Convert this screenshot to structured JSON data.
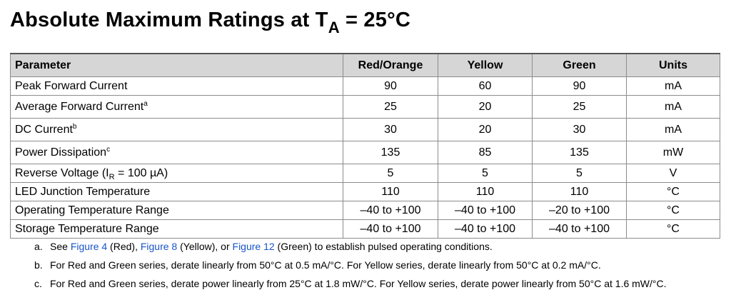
{
  "title": {
    "main": "Absolute Maximum Ratings at T",
    "subscript": "A",
    "tail": " = 25°C"
  },
  "table": {
    "headers": [
      "Parameter",
      "Red/Orange",
      "Yellow",
      "Green",
      "Units"
    ],
    "rows": [
      {
        "param": "Peak Forward Current",
        "sup": "",
        "red_orange": "90",
        "yellow": "60",
        "green": "90",
        "units": "mA"
      },
      {
        "param": "Average Forward Current",
        "sup": "a",
        "red_orange": "25",
        "yellow": "20",
        "green": "25",
        "units": "mA"
      },
      {
        "param": "DC Current",
        "sup": "b",
        "red_orange": "30",
        "yellow": "20",
        "green": "30",
        "units": "mA"
      },
      {
        "param": "Power Dissipation",
        "sup": "c",
        "red_orange": "135",
        "yellow": "85",
        "green": "135",
        "units": "mW"
      },
      {
        "param_pre": "Reverse Voltage (I",
        "param_sub": "R",
        "param_post": " = 100 µA)",
        "red_orange": "5",
        "yellow": "5",
        "green": "5",
        "units": "V"
      },
      {
        "param": "LED Junction Temperature",
        "red_orange": "110",
        "yellow": "110",
        "green": "110",
        "units": "°C"
      },
      {
        "param": "Operating Temperature Range",
        "red_orange": "–40 to +100",
        "yellow": "–40 to +100",
        "green": "–20 to +100",
        "units": "°C"
      },
      {
        "param": "Storage Temperature Range",
        "red_orange": "–40 to +100",
        "yellow": "–40 to +100",
        "green": "–40 to +100",
        "units": "°C"
      }
    ]
  },
  "notes": {
    "a": {
      "letter": "a.",
      "t1": "See ",
      "link1": "Figure 4",
      "t2": " (Red), ",
      "link2": "Figure 8",
      "t3": " (Yellow), or ",
      "link3": "Figure 12",
      "t4": " (Green) to establish pulsed operating conditions."
    },
    "b": {
      "letter": "b.",
      "text": "For Red and Green series, derate linearly from 50°C at 0.5 mA/°C. For Yellow series, derate linearly from 50°C at 0.2 mA/°C."
    },
    "c": {
      "letter": "c.",
      "text": "For Red and Green series, derate power linearly from 25°C at 1.8 mW/°C. For Yellow series, derate power linearly from 50°C at 1.6 mW/°C."
    }
  },
  "colors": {
    "link": "#1a55c8",
    "header_bg": "#d6d6d6"
  }
}
